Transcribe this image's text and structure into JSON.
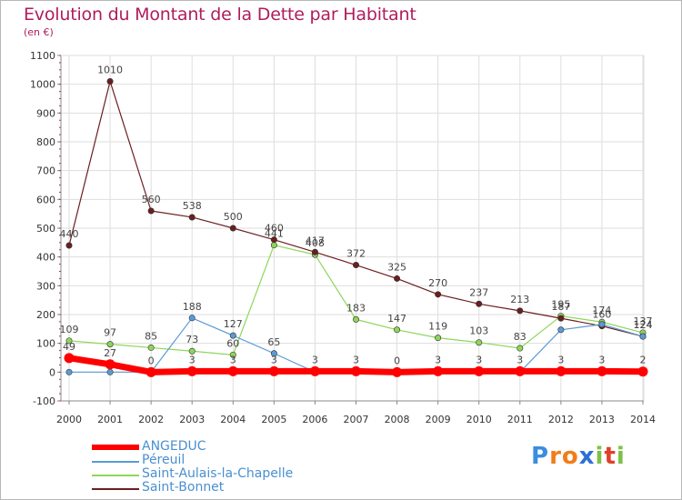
{
  "header": {
    "title": "Evolution du Montant de la Dette par Habitant",
    "unit": "(en €)"
  },
  "logo": {
    "letters": [
      "P",
      "r",
      "o",
      "x",
      "i",
      "t",
      "i"
    ],
    "colors": [
      "#3a8ee0",
      "#f07d1a",
      "#f07d1a",
      "#2e6fd6",
      "#7dc144",
      "#e0402a",
      "#7dc144"
    ]
  },
  "chart_data": {
    "type": "line",
    "x": [
      2000,
      2001,
      2002,
      2003,
      2004,
      2005,
      2006,
      2007,
      2008,
      2009,
      2010,
      2011,
      2012,
      2013,
      2014
    ],
    "ylim": [
      -100,
      1100
    ],
    "yticks": [
      -100,
      0,
      100,
      200,
      300,
      400,
      500,
      600,
      700,
      800,
      900,
      1000,
      1100
    ],
    "grid": true,
    "legend_position": "bottom-left",
    "series": [
      {
        "name": "Saint-Aulais-la-Chapelle",
        "color": "#8ed65a",
        "width": 1.2,
        "values": [
          109,
          97,
          85,
          73,
          60,
          441,
          408,
          183,
          147,
          119,
          103,
          83,
          195,
          174,
          137
        ],
        "labels": [
          "109",
          "97",
          "85",
          "73",
          "60",
          "441",
          "408",
          "183",
          "147",
          "119",
          "103",
          "83",
          "195",
          "174",
          "137"
        ]
      },
      {
        "name": "Saint-Bonnet",
        "color": "#6b1e20",
        "width": 1.2,
        "values": [
          440,
          1010,
          560,
          538,
          500,
          460,
          417,
          372,
          325,
          270,
          237,
          213,
          187,
          160,
          124
        ],
        "labels": [
          "440",
          "1010",
          "560",
          "538",
          "500",
          "460",
          "417",
          "372",
          "325",
          "270",
          "237",
          "213",
          "187",
          "160",
          "124"
        ]
      },
      {
        "name": "Péreuil",
        "color": "#5b9bd5",
        "width": 1.2,
        "values": [
          0,
          0,
          0,
          188,
          127,
          65,
          0,
          0,
          0,
          0,
          0,
          0,
          147,
          166,
          124
        ],
        "labels": [
          "",
          "",
          "",
          "188",
          "127",
          "65",
          "",
          "",
          "",
          "",
          "",
          "",
          "",
          "",
          "124"
        ]
      },
      {
        "name": "ANGEDUC",
        "color": "#ff0000",
        "width": 7,
        "values": [
          49,
          27,
          0,
          3,
          3,
          3,
          3,
          3,
          0,
          3,
          3,
          3,
          3,
          3,
          2
        ],
        "labels": [
          "49",
          "27",
          "0",
          "3",
          "3",
          "3",
          "3",
          "3",
          "0",
          "3",
          "3",
          "3",
          "3",
          "3",
          "2"
        ]
      }
    ],
    "legend_order": [
      "ANGEDUC",
      "Péreuil",
      "Saint-Aulais-la-Chapelle",
      "Saint-Bonnet"
    ]
  }
}
